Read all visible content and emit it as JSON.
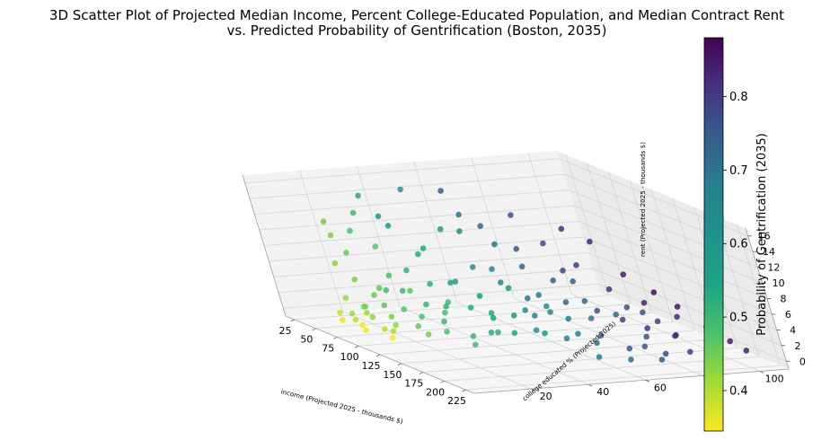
{
  "chart_data": {
    "type": "scatter",
    "title_lines": [
      "3D Scatter Plot of Projected Median Income, Percent College-Educated Population, and Median Contract Rent",
      "vs. Predicted Probability of Gentrification (Boston, 2035)"
    ],
    "xlabel": "income (Projected 2025 - thousands $)",
    "ylabel": "college educated % (Projected 2025)",
    "zlabel": "rent (Projected 2025 - thousands $)",
    "xlim": [
      15,
      235
    ],
    "ylim": [
      0,
      110
    ],
    "zlim": [
      -1,
      17
    ],
    "x_ticks": [
      25,
      50,
      75,
      100,
      125,
      150,
      175,
      200,
      225
    ],
    "y_ticks": [
      20,
      40,
      60,
      80,
      100
    ],
    "z_ticks": [
      0,
      2,
      4,
      6,
      8,
      10,
      12,
      14,
      16
    ],
    "grid": true,
    "colorbar": {
      "label": "Probability of Gentrification (2035)",
      "colormap": "viridis_r",
      "vmin": 0.345,
      "vmax": 0.88,
      "ticks": [
        0.4,
        0.5,
        0.6,
        0.7,
        0.8
      ],
      "tick_labels": [
        "0.4",
        "0.5",
        "0.6",
        "0.7",
        "0.8"
      ]
    },
    "points": [
      {
        "x": 22,
        "y": 22,
        "z": 9,
        "c": 0.45
      },
      {
        "x": 26,
        "y": 20,
        "z": 11,
        "c": 0.46
      },
      {
        "x": 28,
        "y": 24,
        "z": 7,
        "c": 0.47
      },
      {
        "x": 32,
        "y": 18,
        "z": 6,
        "c": 0.44
      },
      {
        "x": 34,
        "y": 26,
        "z": 10,
        "c": 0.5
      },
      {
        "x": 30,
        "y": 30,
        "z": 12,
        "c": 0.52
      },
      {
        "x": 36,
        "y": 22,
        "z": 4,
        "c": 0.45
      },
      {
        "x": 40,
        "y": 16,
        "z": 2,
        "c": 0.43
      },
      {
        "x": 42,
        "y": 28,
        "z": 3,
        "c": 0.48
      },
      {
        "x": 38,
        "y": 32,
        "z": 8,
        "c": 0.49
      },
      {
        "x": 45,
        "y": 20,
        "z": 1,
        "c": 0.44
      },
      {
        "x": 48,
        "y": 24,
        "z": 2.5,
        "c": 0.47
      },
      {
        "x": 50,
        "y": 14,
        "z": 0.5,
        "c": 0.42
      },
      {
        "x": 52,
        "y": 30,
        "z": 5,
        "c": 0.5
      },
      {
        "x": 55,
        "y": 18,
        "z": 1.5,
        "c": 0.46
      },
      {
        "x": 58,
        "y": 26,
        "z": 3.5,
        "c": 0.51
      },
      {
        "x": 60,
        "y": 12,
        "z": 0.2,
        "c": 0.4
      },
      {
        "x": 62,
        "y": 34,
        "z": 6,
        "c": 0.53
      },
      {
        "x": 65,
        "y": 22,
        "z": 2,
        "c": 0.48
      },
      {
        "x": 68,
        "y": 16,
        "z": 0.8,
        "c": 0.44
      },
      {
        "x": 70,
        "y": 40,
        "z": 9,
        "c": 0.56
      },
      {
        "x": 72,
        "y": 28,
        "z": 4,
        "c": 0.52
      },
      {
        "x": 75,
        "y": 10,
        "z": 0.3,
        "c": 0.36
      },
      {
        "x": 78,
        "y": 20,
        "z": 1.2,
        "c": 0.45
      },
      {
        "x": 80,
        "y": 36,
        "z": 5,
        "c": 0.55
      },
      {
        "x": 82,
        "y": 24,
        "z": 2.2,
        "c": 0.49
      },
      {
        "x": 85,
        "y": 44,
        "z": 12,
        "c": 0.6
      },
      {
        "x": 88,
        "y": 18,
        "z": 0.6,
        "c": 0.43
      },
      {
        "x": 90,
        "y": 30,
        "z": 3,
        "c": 0.53
      },
      {
        "x": 92,
        "y": 50,
        "z": 14,
        "c": 0.66
      },
      {
        "x": 95,
        "y": 26,
        "z": 1.8,
        "c": 0.5
      },
      {
        "x": 98,
        "y": 14,
        "z": 0.4,
        "c": 0.41
      },
      {
        "x": 100,
        "y": 38,
        "z": 6,
        "c": 0.57
      },
      {
        "x": 102,
        "y": 22,
        "z": 1,
        "c": 0.47
      },
      {
        "x": 105,
        "y": 46,
        "z": 8,
        "c": 0.62
      },
      {
        "x": 108,
        "y": 32,
        "z": 3.5,
        "c": 0.54
      },
      {
        "x": 110,
        "y": 10,
        "z": 0.2,
        "c": 0.35
      },
      {
        "x": 112,
        "y": 54,
        "z": 11,
        "c": 0.68
      },
      {
        "x": 115,
        "y": 28,
        "z": 2,
        "c": 0.52
      },
      {
        "x": 118,
        "y": 42,
        "z": 5,
        "c": 0.59
      },
      {
        "x": 120,
        "y": 20,
        "z": 0.8,
        "c": 0.46
      },
      {
        "x": 122,
        "y": 60,
        "z": 15,
        "c": 0.74
      },
      {
        "x": 125,
        "y": 36,
        "z": 4,
        "c": 0.56
      },
      {
        "x": 128,
        "y": 48,
        "z": 7,
        "c": 0.63
      },
      {
        "x": 130,
        "y": 24,
        "z": 1.5,
        "c": 0.5
      },
      {
        "x": 132,
        "y": 56,
        "z": 9,
        "c": 0.7
      },
      {
        "x": 135,
        "y": 40,
        "z": 3,
        "c": 0.58
      },
      {
        "x": 138,
        "y": 64,
        "z": 12,
        "c": 0.76
      },
      {
        "x": 140,
        "y": 30,
        "z": 1.2,
        "c": 0.53
      },
      {
        "x": 142,
        "y": 52,
        "z": 5.5,
        "c": 0.66
      },
      {
        "x": 145,
        "y": 70,
        "z": 14,
        "c": 0.8
      },
      {
        "x": 148,
        "y": 44,
        "z": 3.8,
        "c": 0.6
      },
      {
        "x": 150,
        "y": 34,
        "z": 2,
        "c": 0.55
      },
      {
        "x": 152,
        "y": 60,
        "z": 8,
        "c": 0.72
      },
      {
        "x": 155,
        "y": 26,
        "z": 0.9,
        "c": 0.51
      },
      {
        "x": 158,
        "y": 68,
        "z": 10,
        "c": 0.78
      },
      {
        "x": 160,
        "y": 48,
        "z": 4.2,
        "c": 0.64
      },
      {
        "x": 162,
        "y": 74,
        "z": 13,
        "c": 0.82
      },
      {
        "x": 165,
        "y": 38,
        "z": 2.5,
        "c": 0.57
      },
      {
        "x": 168,
        "y": 58,
        "z": 6,
        "c": 0.7
      },
      {
        "x": 170,
        "y": 80,
        "z": 9,
        "c": 0.84
      },
      {
        "x": 172,
        "y": 44,
        "z": 3,
        "c": 0.61
      },
      {
        "x": 175,
        "y": 66,
        "z": 5,
        "c": 0.75
      },
      {
        "x": 178,
        "y": 52,
        "z": 2,
        "c": 0.65
      },
      {
        "x": 180,
        "y": 86,
        "z": 7,
        "c": 0.86
      },
      {
        "x": 182,
        "y": 72,
        "z": 4,
        "c": 0.78
      },
      {
        "x": 185,
        "y": 60,
        "z": 1.5,
        "c": 0.69
      },
      {
        "x": 188,
        "y": 78,
        "z": 3,
        "c": 0.8
      },
      {
        "x": 190,
        "y": 90,
        "z": 5.5,
        "c": 0.85
      },
      {
        "x": 195,
        "y": 68,
        "z": 1,
        "c": 0.73
      },
      {
        "x": 200,
        "y": 84,
        "z": 2.5,
        "c": 0.82
      },
      {
        "x": 205,
        "y": 94,
        "z": 3.5,
        "c": 0.86
      },
      {
        "x": 210,
        "y": 76,
        "z": 0.8,
        "c": 0.76
      },
      {
        "x": 215,
        "y": 98,
        "z": 2,
        "c": 0.84
      },
      {
        "x": 220,
        "y": 88,
        "z": 0.6,
        "c": 0.79
      },
      {
        "x": 225,
        "y": 100,
        "z": 1.2,
        "c": 0.83
      },
      {
        "x": 60,
        "y": 50,
        "z": 4,
        "c": 0.58
      },
      {
        "x": 75,
        "y": 60,
        "z": 6,
        "c": 0.64
      },
      {
        "x": 88,
        "y": 70,
        "z": 3,
        "c": 0.66
      },
      {
        "x": 100,
        "y": 80,
        "z": 5,
        "c": 0.72
      },
      {
        "x": 112,
        "y": 66,
        "z": 2,
        "c": 0.64
      },
      {
        "x": 125,
        "y": 76,
        "z": 1.5,
        "c": 0.68
      },
      {
        "x": 138,
        "y": 86,
        "z": 3.2,
        "c": 0.75
      },
      {
        "x": 150,
        "y": 92,
        "z": 1.8,
        "c": 0.77
      },
      {
        "x": 162,
        "y": 96,
        "z": 2.8,
        "c": 0.81
      },
      {
        "x": 45,
        "y": 44,
        "z": 7,
        "c": 0.55
      },
      {
        "x": 55,
        "y": 58,
        "z": 10,
        "c": 0.62
      },
      {
        "x": 66,
        "y": 66,
        "z": 3,
        "c": 0.6
      },
      {
        "x": 78,
        "y": 74,
        "z": 1,
        "c": 0.62
      },
      {
        "x": 92,
        "y": 84,
        "z": 2,
        "c": 0.69
      },
      {
        "x": 105,
        "y": 90,
        "z": 0.7,
        "c": 0.7
      },
      {
        "x": 118,
        "y": 96,
        "z": 1.4,
        "c": 0.74
      },
      {
        "x": 35,
        "y": 40,
        "z": 2,
        "c": 0.48
      },
      {
        "x": 50,
        "y": 48,
        "z": 1,
        "c": 0.52
      },
      {
        "x": 65,
        "y": 42,
        "z": 0.5,
        "c": 0.5
      },
      {
        "x": 80,
        "y": 54,
        "z": 0.8,
        "c": 0.56
      },
      {
        "x": 95,
        "y": 62,
        "z": 1.6,
        "c": 0.62
      },
      {
        "x": 110,
        "y": 72,
        "z": 0.9,
        "c": 0.65
      },
      {
        "x": 120,
        "y": 44,
        "z": 0.4,
        "c": 0.55
      },
      {
        "x": 135,
        "y": 56,
        "z": 0.6,
        "c": 0.6
      },
      {
        "x": 148,
        "y": 64,
        "z": 0.9,
        "c": 0.66
      },
      {
        "x": 160,
        "y": 84,
        "z": 0.5,
        "c": 0.74
      },
      {
        "x": 175,
        "y": 90,
        "z": 1.1,
        "c": 0.8
      },
      {
        "x": 42,
        "y": 12,
        "z": 0.3,
        "c": 0.39
      },
      {
        "x": 58,
        "y": 8,
        "z": 0.2,
        "c": 0.36
      },
      {
        "x": 85,
        "y": 8,
        "z": 0.1,
        "c": 0.35
      },
      {
        "x": 95,
        "y": 12,
        "z": 0.6,
        "c": 0.4
      },
      {
        "x": 70,
        "y": 14,
        "z": 1.5,
        "c": 0.42
      },
      {
        "x": 48,
        "y": 36,
        "z": 11,
        "c": 0.58
      },
      {
        "x": 62,
        "y": 30,
        "z": 13,
        "c": 0.6
      },
      {
        "x": 28,
        "y": 34,
        "z": 14,
        "c": 0.55
      },
      {
        "x": 40,
        "y": 46,
        "z": 15,
        "c": 0.6
      },
      {
        "x": 70,
        "y": 52,
        "z": 16,
        "c": 0.72
      },
      {
        "x": 85,
        "y": 58,
        "z": 12,
        "c": 0.7
      },
      {
        "x": 108,
        "y": 62,
        "z": 10,
        "c": 0.73
      },
      {
        "x": 130,
        "y": 70,
        "z": 8,
        "c": 0.76
      },
      {
        "x": 145,
        "y": 80,
        "z": 6,
        "c": 0.79
      },
      {
        "x": 155,
        "y": 88,
        "z": 4.5,
        "c": 0.82
      },
      {
        "x": 170,
        "y": 66,
        "z": 1.6,
        "c": 0.71
      },
      {
        "x": 185,
        "y": 76,
        "z": 0.6,
        "c": 0.74
      },
      {
        "x": 198,
        "y": 56,
        "z": 0.4,
        "c": 0.66
      },
      {
        "x": 208,
        "y": 64,
        "z": 0.3,
        "c": 0.68
      },
      {
        "x": 212,
        "y": 84,
        "z": 0.9,
        "c": 0.78
      },
      {
        "x": 218,
        "y": 72,
        "z": 0.5,
        "c": 0.72
      }
    ]
  }
}
